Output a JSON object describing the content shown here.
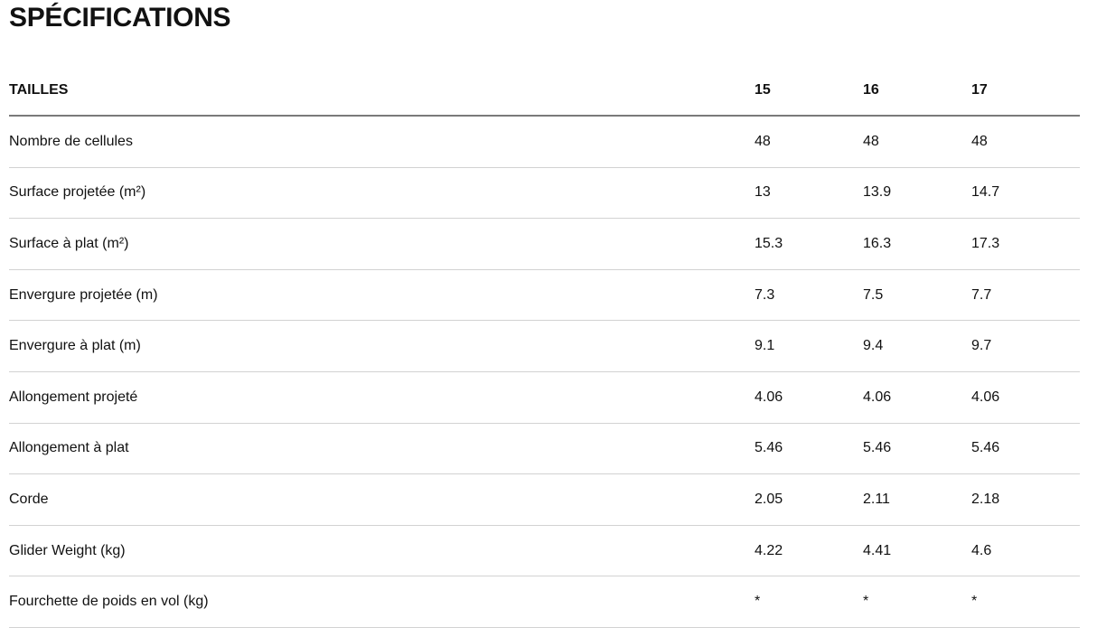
{
  "title": "SPÉCIFICATIONS",
  "table": {
    "header_label": "TAILLES",
    "sizes": [
      "15",
      "16",
      "17"
    ],
    "rows": [
      {
        "label": "Nombre de cellules",
        "values": [
          "48",
          "48",
          "48"
        ]
      },
      {
        "label": "Surface projetée (m²)",
        "values": [
          "13",
          "13.9",
          "14.7"
        ]
      },
      {
        "label": "Surface à plat (m²)",
        "values": [
          "15.3",
          "16.3",
          "17.3"
        ]
      },
      {
        "label": "Envergure projetée (m)",
        "values": [
          "7.3",
          "7.5",
          "7.7"
        ]
      },
      {
        "label": "Envergure à plat (m)",
        "values": [
          "9.1",
          "9.4",
          "9.7"
        ]
      },
      {
        "label": "Allongement projeté",
        "values": [
          "4.06",
          "4.06",
          "4.06"
        ]
      },
      {
        "label": "Allongement à plat",
        "values": [
          "5.46",
          "5.46",
          "5.46"
        ]
      },
      {
        "label": "Corde",
        "values": [
          "2.05",
          "2.11",
          "2.18"
        ]
      },
      {
        "label": "Glider Weight (kg)",
        "values": [
          "4.22",
          "4.41",
          "4.6"
        ]
      },
      {
        "label": "Fourchette de poids en vol (kg)",
        "values": [
          "*",
          "*",
          "*"
        ]
      }
    ]
  }
}
